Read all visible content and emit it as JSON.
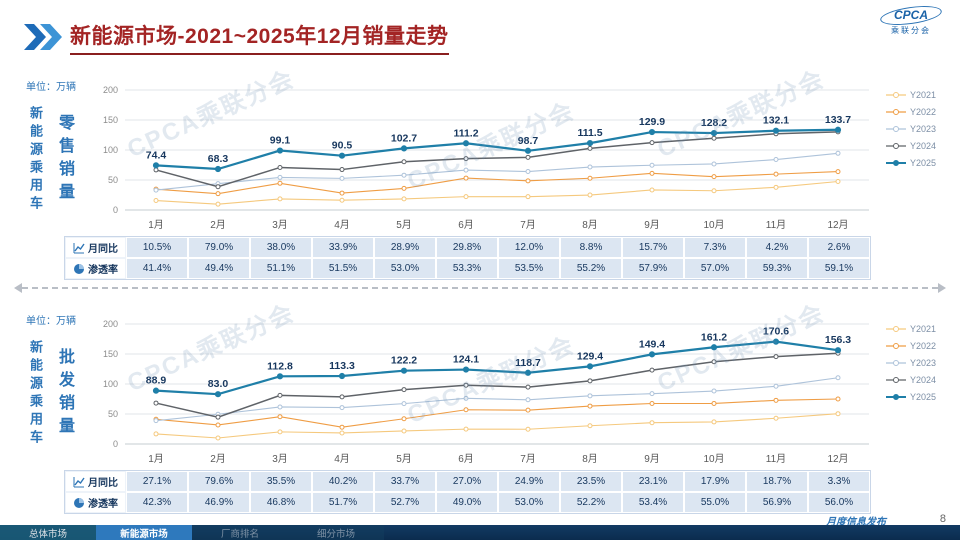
{
  "watermark": "CPCA乘联分会",
  "header": {
    "title": "新能源市场-2021~2025年12月销量走势",
    "logo_text": "CPCA",
    "logo_sub": "乘联分会"
  },
  "panels": [
    {
      "unit": "单位：万辆",
      "side_label": "新能源乘用车",
      "measure_label": "零售销量",
      "table": {
        "rows": [
          {
            "label": "月同比",
            "icon": "line-chart-icon",
            "values": [
              "10.5%",
              "79.0%",
              "38.0%",
              "33.9%",
              "28.9%",
              "29.8%",
              "12.0%",
              "8.8%",
              "15.7%",
              "7.3%",
              "4.2%",
              "2.6%"
            ]
          },
          {
            "label": "渗透率",
            "icon": "pie-chart-icon",
            "values": [
              "41.4%",
              "49.4%",
              "51.1%",
              "51.5%",
              "53.0%",
              "53.3%",
              "53.5%",
              "55.2%",
              "57.9%",
              "57.0%",
              "59.3%",
              "59.1%"
            ]
          }
        ]
      }
    },
    {
      "unit": "单位：万辆",
      "side_label": "新能源乘用车",
      "measure_label": "批发销量",
      "table": {
        "rows": [
          {
            "label": "月同比",
            "icon": "line-chart-icon",
            "values": [
              "27.1%",
              "79.6%",
              "35.5%",
              "40.2%",
              "33.7%",
              "27.0%",
              "24.9%",
              "23.5%",
              "23.1%",
              "17.9%",
              "18.7%",
              "3.3%"
            ]
          },
          {
            "label": "渗透率",
            "icon": "pie-chart-icon",
            "values": [
              "42.3%",
              "46.9%",
              "46.8%",
              "51.7%",
              "52.7%",
              "49.0%",
              "53.0%",
              "52.2%",
              "53.4%",
              "55.0%",
              "56.9%",
              "56.0%"
            ]
          }
        ]
      }
    }
  ],
  "chart_data": [
    {
      "id": "retail",
      "type": "line",
      "title": "新能源乘用车零售销量",
      "ylabel": "万辆",
      "ylim": [
        0,
        200
      ],
      "yticks": [
        0,
        50,
        100,
        150,
        200
      ],
      "grid": true,
      "legend_position": "right",
      "categories": [
        "1月",
        "2月",
        "3月",
        "4月",
        "5月",
        "6月",
        "7月",
        "8月",
        "9月",
        "10月",
        "11月",
        "12月"
      ],
      "series": [
        {
          "name": "Y2021",
          "color": "#f5c97e",
          "width": 1.1,
          "values": [
            15.8,
            9.7,
            18.5,
            16.3,
            18.5,
            22.3,
            22.2,
            24.9,
            33.4,
            32.1,
            37.8,
            47.5
          ]
        },
        {
          "name": "Y2022",
          "color": "#ef9d45",
          "width": 1.1,
          "values": [
            34.7,
            27.2,
            44.5,
            28.2,
            36.0,
            53.2,
            48.6,
            52.9,
            61.1,
            55.6,
            59.8,
            64.0
          ]
        },
        {
          "name": "Y2023",
          "color": "#aec3da",
          "width": 1.1,
          "values": [
            33.2,
            43.9,
            54.3,
            52.7,
            58.0,
            66.5,
            64.1,
            71.6,
            74.6,
            76.7,
            84.1,
            94.5
          ]
        },
        {
          "name": "Y2024",
          "color": "#5f6368",
          "width": 1.5,
          "values": [
            66.8,
            38.8,
            70.9,
            67.4,
            80.4,
            85.6,
            87.8,
            102.7,
            112.3,
            119.6,
            127.0,
            130.2
          ]
        },
        {
          "name": "Y2025",
          "color": "#1f7fa8",
          "width": 2.2,
          "emphasis": true,
          "values": [
            74.4,
            68.3,
            99.1,
            90.5,
            102.7,
            111.2,
            98.7,
            111.5,
            129.9,
            128.2,
            132.1,
            133.7
          ]
        }
      ]
    },
    {
      "id": "wholesale",
      "type": "line",
      "title": "新能源乘用车批发销量",
      "ylabel": "万辆",
      "ylim": [
        0,
        200
      ],
      "yticks": [
        0,
        50,
        100,
        150,
        200
      ],
      "grid": true,
      "legend_position": "right",
      "categories": [
        "1月",
        "2月",
        "3月",
        "4月",
        "5月",
        "6月",
        "7月",
        "8月",
        "9月",
        "10月",
        "11月",
        "12月"
      ],
      "series": [
        {
          "name": "Y2021",
          "color": "#f5c97e",
          "width": 1.1,
          "values": [
            16.8,
            10.0,
            20.2,
            18.4,
            21.7,
            24.8,
            24.6,
            30.4,
            35.5,
            36.8,
            42.9,
            50.5
          ]
        },
        {
          "name": "Y2022",
          "color": "#ef9d45",
          "width": 1.1,
          "values": [
            41.2,
            31.7,
            45.5,
            28.0,
            42.1,
            57.1,
            56.4,
            63.2,
            67.5,
            67.6,
            72.8,
            75.0
          ]
        },
        {
          "name": "Y2023",
          "color": "#aec3da",
          "width": 1.1,
          "values": [
            38.9,
            49.6,
            61.7,
            60.7,
            67.3,
            76.1,
            73.7,
            80.3,
            83.9,
            88.3,
            96.2,
            110.4
          ]
        },
        {
          "name": "Y2024",
          "color": "#5f6368",
          "width": 1.5,
          "values": [
            68.2,
            44.7,
            81.0,
            78.5,
            90.7,
            98.0,
            94.8,
            105.3,
            123.1,
            137.1,
            145.7,
            151.2
          ]
        },
        {
          "name": "Y2025",
          "color": "#1f7fa8",
          "width": 2.2,
          "emphasis": true,
          "values": [
            88.9,
            83.0,
            112.8,
            113.3,
            122.2,
            124.1,
            118.7,
            129.4,
            149.4,
            161.2,
            170.6,
            156.3
          ]
        }
      ]
    }
  ],
  "footer": {
    "note": "月度信息发布",
    "page": "8",
    "tabs": [
      {
        "label": "总体市场",
        "state": "inactive"
      },
      {
        "label": "新能源市场",
        "state": "active"
      },
      {
        "label": "厂商排名",
        "state": "faded"
      },
      {
        "label": "细分市场",
        "state": "faded"
      }
    ]
  }
}
